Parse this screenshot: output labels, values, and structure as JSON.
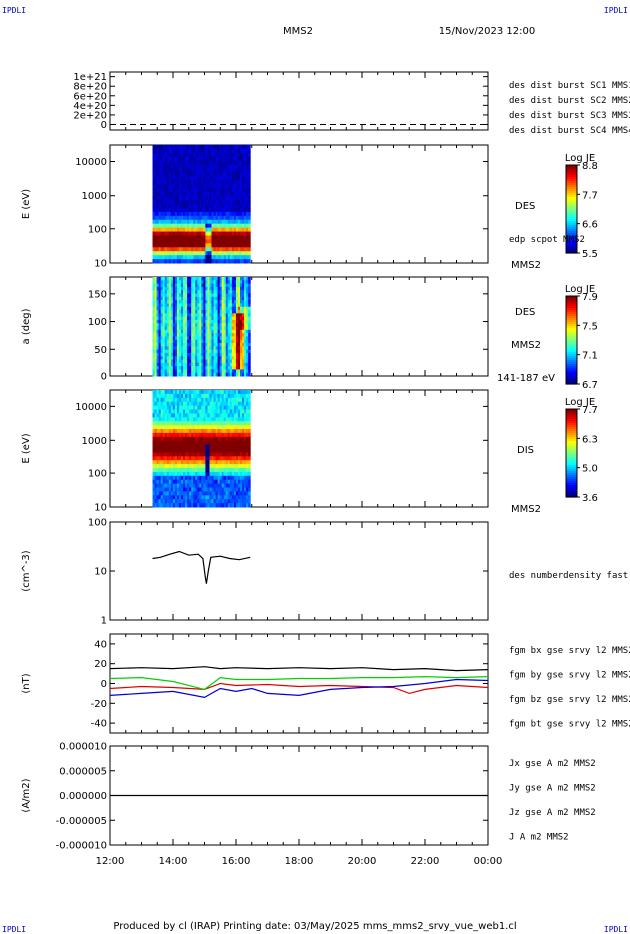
{
  "header": {
    "corner_left": "IPDLI",
    "corner_right": "IPDLI",
    "spacecraft": "MMS2",
    "date": "15/Nov/2023 12:00",
    "footer": "Produced by cl (IRAP)   Printing date: 03/May/2025   mms_mms2_srvy_vue_web1.cl",
    "corner_bottom_left": "IPDLI",
    "corner_bottom_right": "IPDLI"
  },
  "time_axis": {
    "tick_labels": [
      "12:00",
      "14:00",
      "16:00",
      "18:00",
      "20:00",
      "22:00",
      "00:00"
    ],
    "start_hours": 12,
    "end_hours": 24
  },
  "colors": {
    "blue": "#0000d2",
    "magenta": "#d200d2",
    "red": "#e10000",
    "green": "#00d200",
    "black": "#000000"
  },
  "chart_data": [
    {
      "type": "line",
      "panel": "burst",
      "yticks": [
        "1e+21",
        "8e+20",
        "6e+20",
        "4e+20",
        "2e+20",
        "0"
      ],
      "ylim": [
        0,
        1e+21
      ],
      "legend": [
        {
          "label": "des dist burst SC1 MMS1",
          "color": "#0000d2"
        },
        {
          "label": "des dist burst SC2 MMS2",
          "color": "#d200d2"
        },
        {
          "label": "des dist burst SC3 MMS3",
          "color": "#e10000"
        },
        {
          "label": "des dist burst SC4 MMS4",
          "color": "#00d200"
        }
      ],
      "series": [
        {
          "x": [
            12,
            24
          ],
          "values": [
            0,
            0
          ]
        }
      ]
    },
    {
      "type": "heatmap",
      "panel": "des_energy",
      "ylabel": "E (eV)",
      "yscale": "log",
      "ylim": [
        10,
        25000
      ],
      "yticks": [
        "10000",
        "1000",
        "100",
        "10"
      ],
      "data_range_hours": [
        13.35,
        16.45
      ],
      "right_labels": [
        "DES",
        "edp scpot MMS2",
        "MMS2"
      ],
      "colorbar": {
        "title": "Log JE",
        "ticks": [
          "8.8",
          "7.7",
          "6.6",
          "5.5"
        ],
        "range": [
          5.5,
          8.8
        ]
      }
    },
    {
      "type": "heatmap",
      "panel": "des_pitch",
      "ylabel": "a (deg)",
      "ylim": [
        0,
        180
      ],
      "yticks": [
        "150",
        "100",
        "50",
        "0"
      ],
      "data_range_hours": [
        13.35,
        16.45
      ],
      "right_labels": [
        "DES",
        "MMS2",
        "141-187 eV"
      ],
      "colorbar": {
        "title": "Log JE",
        "ticks": [
          "7.9",
          "7.5",
          "7.1",
          "6.7"
        ],
        "range": [
          6.7,
          7.9
        ]
      }
    },
    {
      "type": "heatmap",
      "panel": "dis_energy",
      "ylabel": "E (eV)",
      "yscale": "log",
      "ylim": [
        10,
        25000
      ],
      "yticks": [
        "10000",
        "1000",
        "100",
        "10"
      ],
      "data_range_hours": [
        13.35,
        16.45
      ],
      "right_labels": [
        "DIS",
        "MMS2"
      ],
      "colorbar": {
        "title": "Log JE",
        "ticks": [
          "7.7",
          "6.3",
          "5.0",
          "3.6"
        ],
        "range": [
          3.6,
          7.7
        ]
      }
    },
    {
      "type": "line",
      "panel": "density",
      "ylabel": "(cm^-3)",
      "yscale": "log",
      "ylim": [
        1,
        100
      ],
      "yticks": [
        "100",
        "10",
        "1"
      ],
      "legend": [
        {
          "label": "des numberdensity fast M",
          "color": "#000000"
        }
      ],
      "series": [
        {
          "name": "des numberdensity fast M",
          "color": "#000000",
          "x": [
            13.35,
            13.6,
            13.9,
            14.2,
            14.5,
            14.8,
            14.95,
            15.02,
            15.06,
            15.12,
            15.2,
            15.5,
            15.8,
            16.1,
            16.45
          ],
          "values": [
            18,
            19,
            22,
            25,
            21,
            22,
            18,
            8,
            5.5,
            10,
            19,
            20,
            18,
            17,
            19
          ]
        }
      ]
    },
    {
      "type": "line",
      "panel": "magnetic_field",
      "ylabel": "(nT)",
      "ylim": [
        -50,
        50
      ],
      "yticks": [
        "40",
        "20",
        "0",
        "-20",
        "-40"
      ],
      "legend": [
        {
          "label": "fgm bx gse srvy l2 MMS2",
          "color": "#e10000"
        },
        {
          "label": "fgm by gse srvy l2 MMS2",
          "color": "#00d200"
        },
        {
          "label": "fgm bz gse srvy l2 MMS2",
          "color": "#0000d2"
        },
        {
          "label": "fgm bt gse srvy l2 MMS2",
          "color": "#000000"
        }
      ],
      "series": [
        {
          "name": "fgm bx gse srvy l2 MMS2",
          "color": "#e10000",
          "x": [
            12,
            13,
            14,
            15,
            15.5,
            16,
            17,
            18,
            19,
            20,
            21,
            21.5,
            22,
            23,
            24
          ],
          "values": [
            -5,
            -3,
            -4,
            -6,
            0,
            -2,
            -1,
            -3,
            -2,
            -3,
            -4,
            -10,
            -6,
            -2,
            -4
          ]
        },
        {
          "name": "fgm by gse srvy l2 MMS2",
          "color": "#00d200",
          "x": [
            12,
            13,
            14,
            15,
            15.5,
            16,
            17,
            18,
            19,
            20,
            21,
            22,
            23,
            24
          ],
          "values": [
            5,
            6,
            2,
            -6,
            6,
            4,
            4,
            5,
            5,
            6,
            6,
            7,
            6,
            7
          ]
        },
        {
          "name": "fgm bz gse srvy l2 MMS2",
          "color": "#0000d2",
          "x": [
            12,
            13,
            14,
            15,
            15.5,
            16,
            16.5,
            17,
            18,
            19,
            20,
            21,
            22,
            23,
            24
          ],
          "values": [
            -12,
            -10,
            -8,
            -14,
            -5,
            -8,
            -5,
            -10,
            -12,
            -6,
            -4,
            -3,
            0,
            4,
            3
          ]
        },
        {
          "name": "fgm bt gse srvy l2 MMS2",
          "color": "#000000",
          "x": [
            12,
            13,
            14,
            15,
            15.5,
            16,
            17,
            18,
            19,
            20,
            21,
            22,
            23,
            24
          ],
          "values": [
            15,
            16,
            15,
            17,
            15,
            16,
            15,
            16,
            15,
            16,
            14,
            15,
            13,
            14
          ]
        }
      ]
    },
    {
      "type": "line",
      "panel": "current_density",
      "ylabel": "(A/m2)",
      "ylim": [
        -1e-05,
        1e-05
      ],
      "yticks": [
        "0.000010",
        "0.000005",
        "0.000000",
        "-0.000005",
        "-0.000010"
      ],
      "legend": [
        {
          "label": "Jx gse A m2 MMS2",
          "color": "#e10000"
        },
        {
          "label": "Jy gse A m2 MMS2",
          "color": "#00d200"
        },
        {
          "label": "Jz gse A m2 MMS2",
          "color": "#0000d2"
        },
        {
          "label": "J A m2 MMS2",
          "color": "#000000"
        }
      ],
      "series": [
        {
          "name": "J A m2 MMS2",
          "color": "#000000",
          "x": [
            12,
            24
          ],
          "values": [
            0,
            0
          ]
        }
      ]
    }
  ]
}
